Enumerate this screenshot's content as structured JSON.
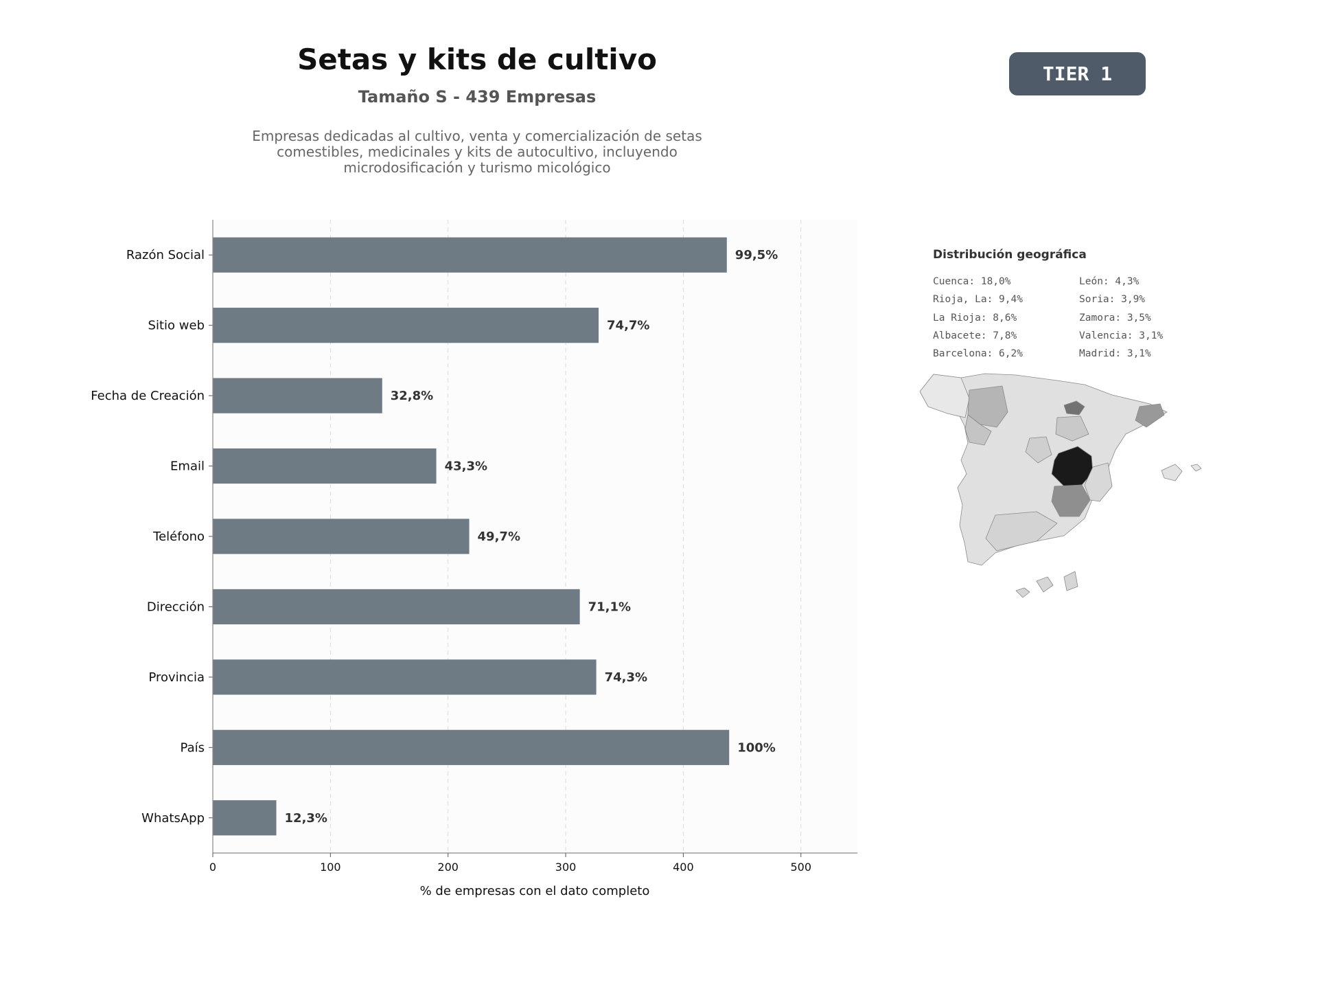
{
  "header": {
    "title": "Setas y kits de cultivo",
    "subtitle": "Tamaño S - 439 Empresas",
    "description": "Empresas dedicadas al cultivo, venta y comercialización de setas comestibles, medicinales y kits de autocultivo, incluyendo microdosificación y turismo micológico",
    "tier": "TIER 1"
  },
  "chart_data": {
    "type": "bar",
    "orientation": "horizontal",
    "title": "",
    "xlabel": "% de empresas con el dato completo",
    "ylabel": "",
    "xlim": [
      0,
      548
    ],
    "xticks": [
      0,
      100,
      200,
      300,
      400,
      500
    ],
    "grid": "vertical dashed",
    "bar_color": "#6e7a84",
    "categories": [
      "Razón Social",
      "Sitio web",
      "Fecha de Creación",
      "Email",
      "Teléfono",
      "Dirección",
      "Provincia",
      "País",
      "WhatsApp"
    ],
    "values": [
      437,
      328,
      144,
      190,
      218,
      312,
      326,
      439,
      54
    ],
    "labels": [
      "99,5%",
      "74,7%",
      "32,8%",
      "43,3%",
      "49,7%",
      "71,1%",
      "74,3%",
      "100%",
      "12,3%"
    ]
  },
  "geo": {
    "title": "Distribución geográfica",
    "items": [
      "Cuenca: 18,0%",
      "León: 4,3%",
      "Rioja, La: 9,4%",
      "Soria: 3,9%",
      "La Rioja: 8,6%",
      "Zamora: 3,5%",
      "Albacete: 7,8%",
      "Valencia: 3,1%",
      "Barcelona: 6,2%",
      "Madrid: 3,1%"
    ]
  }
}
